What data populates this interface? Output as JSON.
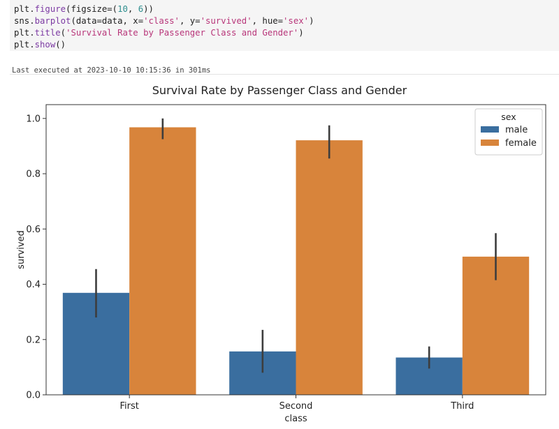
{
  "code": {
    "lines": [
      [
        {
          "t": "plt.",
          "c": ""
        },
        {
          "t": "figure",
          "c": "fn"
        },
        {
          "t": "(figsize=(",
          "c": ""
        },
        {
          "t": "10",
          "c": "num"
        },
        {
          "t": ", ",
          "c": ""
        },
        {
          "t": "6",
          "c": "num"
        },
        {
          "t": "))",
          "c": ""
        }
      ],
      [
        {
          "t": "sns.",
          "c": ""
        },
        {
          "t": "barplot",
          "c": "fn"
        },
        {
          "t": "(data=data, x=",
          "c": ""
        },
        {
          "t": "'class'",
          "c": "str"
        },
        {
          "t": ", y=",
          "c": ""
        },
        {
          "t": "'survived'",
          "c": "str"
        },
        {
          "t": ", hue=",
          "c": ""
        },
        {
          "t": "'sex'",
          "c": "str"
        },
        {
          "t": ")",
          "c": ""
        }
      ],
      [
        {
          "t": "plt.",
          "c": ""
        },
        {
          "t": "title",
          "c": "fn"
        },
        {
          "t": "(",
          "c": ""
        },
        {
          "t": "'Survival Rate by Passenger Class and Gender'",
          "c": "str"
        },
        {
          "t": ")",
          "c": ""
        }
      ],
      [
        {
          "t": "plt.",
          "c": ""
        },
        {
          "t": "show",
          "c": "fn"
        },
        {
          "t": "()",
          "c": ""
        }
      ]
    ]
  },
  "execution": {
    "status_text": "Last executed at 2023-10-10 10:15:36 in 301ms"
  },
  "chart_data": {
    "type": "bar",
    "title": "Survival Rate by Passenger Class and Gender",
    "xlabel": "class",
    "ylabel": "survived",
    "categories": [
      "First",
      "Second",
      "Third"
    ],
    "ylim": [
      0,
      1.05
    ],
    "yticks": [
      0.0,
      0.2,
      0.4,
      0.6,
      0.8,
      1.0
    ],
    "ytick_labels": [
      "0.0",
      "0.2",
      "0.4",
      "0.6",
      "0.8",
      "1.0"
    ],
    "series": [
      {
        "name": "male",
        "color": "#3a6e9f",
        "values": [
          0.369,
          0.157,
          0.135
        ],
        "err_low": [
          0.28,
          0.08,
          0.095
        ],
        "err_high": [
          0.455,
          0.235,
          0.175
        ]
      },
      {
        "name": "female",
        "color": "#d8843b",
        "values": [
          0.968,
          0.921,
          0.5
        ],
        "err_low": [
          0.925,
          0.855,
          0.415
        ],
        "err_high": [
          1.0,
          0.975,
          0.585
        ]
      }
    ],
    "legend": {
      "title": "sex",
      "placement": "top-right"
    },
    "grid": false
  }
}
